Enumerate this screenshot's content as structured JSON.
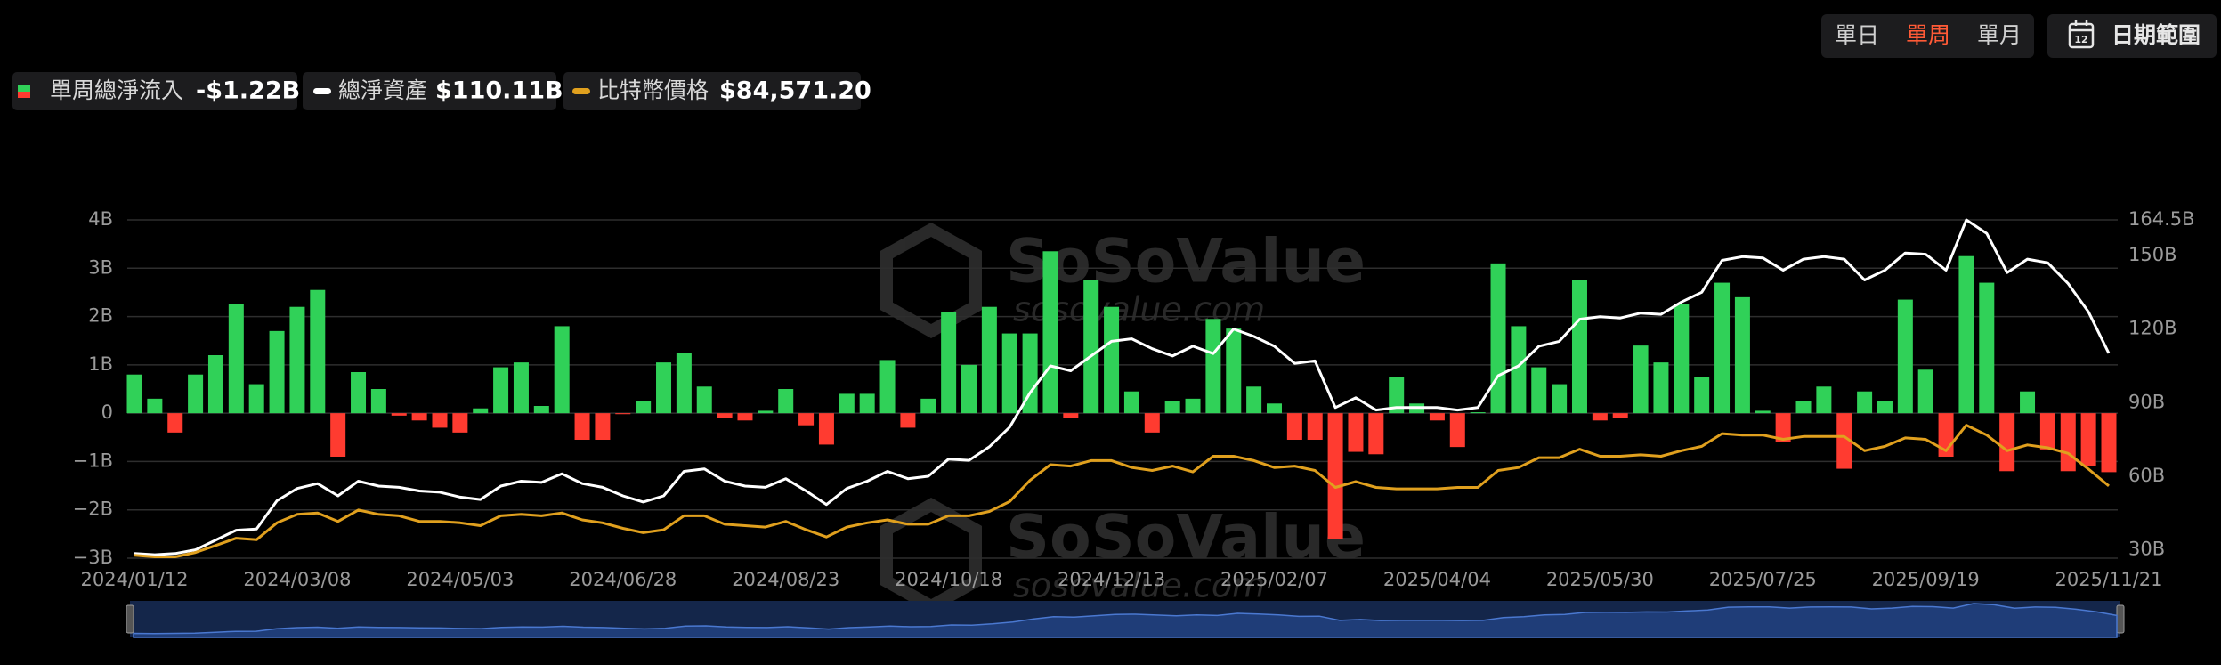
{
  "controls": {
    "period_options": [
      "單日",
      "單周",
      "單月"
    ],
    "active": 1,
    "calendar_day": "12",
    "date_range": "日期範圍"
  },
  "watermark": {
    "logo": "SoSoValue",
    "url": "sosovalue.com"
  },
  "chart_data": {
    "type": "bar",
    "categories": [
      "2024/01/12",
      null,
      null,
      null,
      null,
      null,
      null,
      null,
      "2024/03/08",
      null,
      null,
      null,
      null,
      null,
      null,
      null,
      "2024/05/03",
      null,
      null,
      null,
      null,
      null,
      null,
      null,
      "2024/06/28",
      null,
      null,
      null,
      null,
      null,
      null,
      null,
      "2024/08/23",
      null,
      null,
      null,
      null,
      null,
      null,
      null,
      "2024/10/18",
      null,
      null,
      null,
      null,
      null,
      null,
      null,
      "2024/12/13",
      null,
      null,
      null,
      null,
      null,
      null,
      null,
      "2025/02/07",
      null,
      null,
      null,
      null,
      null,
      null,
      null,
      "2025/04/04",
      null,
      null,
      null,
      null,
      null,
      null,
      null,
      "2025/05/30",
      null,
      null,
      null,
      null,
      null,
      null,
      null,
      "2025/07/25",
      null,
      null,
      null,
      null,
      null,
      null,
      null,
      "2025/09/19",
      null,
      null,
      null,
      null,
      null,
      null,
      null,
      null,
      "2025/11/21"
    ],
    "ylim": [
      -3,
      4
    ],
    "yticks": [
      {
        "value": -3,
        "label": "−3B"
      },
      {
        "value": -2,
        "label": "−2B"
      },
      {
        "value": -1,
        "label": "−1B"
      },
      0,
      {
        "value": 1,
        "label": "1B"
      },
      {
        "value": 2,
        "label": "2B"
      },
      {
        "value": 3,
        "label": "3B"
      },
      {
        "value": 4,
        "label": "4B"
      }
    ],
    "y2lim": [
      26.6,
      164.5
    ],
    "y2ticks": [
      {
        "value": 30,
        "label": "30B"
      },
      {
        "value": 60,
        "label": "60B"
      },
      {
        "value": 90,
        "label": "90B"
      },
      {
        "value": 120,
        "label": "120B"
      },
      {
        "value": 150,
        "label": "150B"
      },
      {
        "value": 164.5,
        "label": "164.5B"
      }
    ],
    "y3lim": [
      44434,
      232527
    ],
    "grid": true,
    "series": [
      {
        "name": "單周總淨流入",
        "type": "bar",
        "latest_label": "-$1.22B",
        "color": "#30d158",
        "negative_color": "#ff3b30",
        "values": [
          0.8,
          0.3,
          -0.4,
          0.8,
          1.2,
          2.25,
          0.6,
          1.7,
          2.2,
          2.55,
          -0.9,
          0.85,
          0.5,
          -0.05,
          -0.15,
          -0.3,
          -0.4,
          0.1,
          0.95,
          1.05,
          0.15,
          1.8,
          -0.55,
          -0.55,
          -0.02,
          0.25,
          1.05,
          1.25,
          0.55,
          -0.1,
          -0.15,
          0.05,
          0.5,
          -0.25,
          -0.65,
          0.4,
          0.4,
          1.1,
          -0.3,
          0.3,
          2.1,
          1.0,
          2.2,
          1.65,
          1.65,
          3.35,
          -0.1,
          2.75,
          2.2,
          0.45,
          -0.4,
          0.25,
          0.3,
          1.95,
          1.75,
          0.55,
          0.2,
          -0.55,
          -0.55,
          -2.6,
          -0.8,
          -0.85,
          0.75,
          0.2,
          -0.15,
          -0.7,
          0.02,
          3.1,
          1.8,
          0.95,
          0.6,
          2.75,
          -0.15,
          -0.1,
          1.4,
          1.05,
          2.25,
          0.75,
          2.7,
          2.4,
          0.05,
          -0.6,
          0.25,
          0.55,
          -1.15,
          0.45,
          0.25,
          2.35,
          0.9,
          -0.9,
          3.25,
          2.7,
          -1.2,
          0.45,
          -0.75,
          -1.2,
          -1.1,
          -1.22
        ]
      },
      {
        "name": "總淨資產",
        "type": "line",
        "axis": "y2",
        "latest_label": "$110.11B",
        "color": "#ffffff",
        "values": [
          28.5,
          28,
          28.5,
          30,
          34,
          38,
          38.5,
          50,
          55,
          57,
          52,
          58,
          56,
          55.5,
          54,
          53.5,
          51.5,
          50.5,
          56,
          58,
          57.5,
          61,
          57,
          55.5,
          52,
          49.5,
          52,
          62,
          63,
          58,
          56,
          55.5,
          59,
          54,
          48.5,
          55,
          58,
          62,
          59,
          60,
          67,
          66.5,
          72,
          80,
          94,
          105,
          103,
          109,
          115,
          116,
          112,
          109,
          113,
          110,
          120,
          117,
          113,
          106,
          107,
          88,
          92,
          87,
          88,
          88,
          88,
          87,
          88,
          101,
          105,
          113,
          115,
          124,
          125,
          124.5,
          126.5,
          126,
          131,
          135,
          148,
          149.5,
          149,
          144,
          148.5,
          149.5,
          148.5,
          140,
          144,
          151,
          150.5,
          144,
          164.5,
          159,
          143,
          148.5,
          147,
          138.5,
          127,
          110.11
        ]
      },
      {
        "name": "比特幣價格",
        "type": "line",
        "axis": "y3",
        "latest_label": "$84,571.20",
        "color": "#e0a01e",
        "values": [
          46000,
          45200,
          45200,
          47600,
          51500,
          55500,
          54700,
          64100,
          68800,
          69600,
          64900,
          71200,
          68800,
          68000,
          64900,
          64900,
          64100,
          62500,
          68000,
          68800,
          68000,
          69600,
          65700,
          64100,
          61000,
          58600,
          60200,
          68000,
          68000,
          63300,
          62500,
          61700,
          64900,
          60200,
          56200,
          61700,
          64100,
          65700,
          63300,
          63300,
          68000,
          68000,
          70400,
          75900,
          87700,
          96400,
          95600,
          98700,
          98700,
          94800,
          93200,
          95600,
          92400,
          101100,
          101100,
          98700,
          94800,
          95600,
          93200,
          83800,
          87000,
          83800,
          83000,
          83000,
          83000,
          83800,
          83800,
          93200,
          94800,
          100300,
          100300,
          105000,
          101100,
          101100,
          101900,
          101100,
          104200,
          106600,
          113700,
          112900,
          112900,
          110500,
          112100,
          112100,
          112100,
          104200,
          106600,
          111300,
          110500,
          104200,
          118400,
          112900,
          104200,
          107400,
          105800,
          102700,
          94000,
          84571.2
        ]
      }
    ]
  }
}
